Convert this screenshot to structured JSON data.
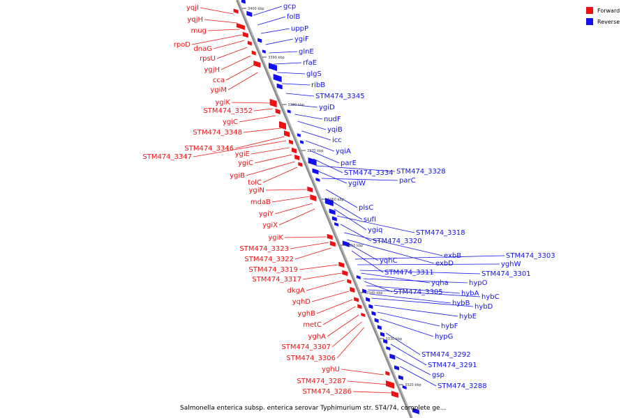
{
  "title": "Salmonella enterica subsp. enterica serovar Typhimurium str. ST4/74, complete ge...",
  "legend": [
    {
      "label": "Forward",
      "color": "#ee1111"
    },
    {
      "label": "Reverse",
      "color": "#1111ee"
    }
  ],
  "axis_ticks": [
    "3400 kbp",
    "3390 kbp",
    "3380 kbp",
    "3370 kbp",
    "3360 kbp",
    "3350 kbp",
    "3340 kbp",
    "3330 kbp",
    "3320 kbp"
  ],
  "forward_labels": [
    "yqjI",
    "yqjH",
    "mug",
    "rpoD",
    "dnaG",
    "rpsU",
    "ygjH",
    "cca",
    "ygiM",
    "ygiK",
    "STM474_3352",
    "ygiC",
    "STM474_3348",
    "STM474_3346",
    "STM474_3347",
    "ygiE",
    "ygiC",
    "ygiB",
    "tolC",
    "ygiN",
    "mdaB",
    "ygiY",
    "ygiX",
    "ygiK",
    "STM474_3323",
    "STM474_3322",
    "STM474_3319",
    "STM474_3317",
    "dkgA",
    "yqhD",
    "yghB",
    "metC",
    "yghA",
    "STM474_3307",
    "STM474_3306",
    "yghU",
    "STM474_3287",
    "STM474_3286"
  ],
  "reverse_labels": [
    "gcp",
    "folB",
    "uppP",
    "ygiF",
    "glnE",
    "rfaE",
    "glgS",
    "ribB",
    "STM474_3345",
    "ygiD",
    "nudF",
    "yqiB",
    "icc",
    "yqiA",
    "parE",
    "STM474_3334",
    "STM474_3328",
    "ygiW",
    "parC",
    "plsC",
    "sufI",
    "ygiq",
    "STM474_3318",
    "STM474_3320",
    "exbB",
    "exbD",
    "yqhC",
    "STM474_3311",
    "STM474_3303",
    "yghW",
    "STM474_3301",
    "yqha",
    "hypO",
    "STM474_3305",
    "hybA",
    "hybC",
    "hybB",
    "hybD",
    "hybE",
    "hybF",
    "hypG",
    "STM474_3292",
    "STM474_3291",
    "gsp",
    "STM474_3288"
  ],
  "colors": {
    "forward": "#ee1111",
    "reverse": "#1111ee",
    "axis": "#888888"
  }
}
